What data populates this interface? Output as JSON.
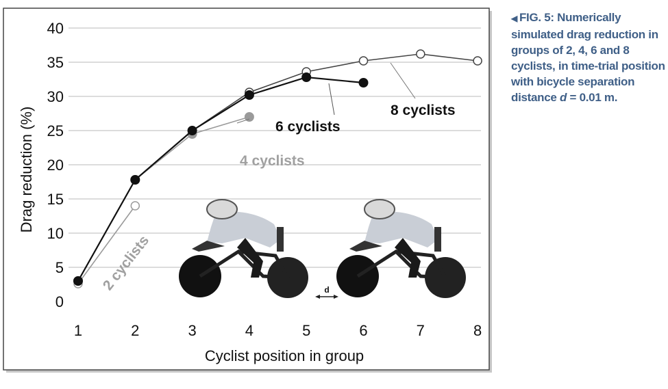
{
  "chart_data": {
    "type": "line",
    "xlabel": "Cyclist position in group",
    "ylabel": "Drag reduction (%)",
    "xlim": [
      1,
      8
    ],
    "ylim": [
      0,
      40
    ],
    "x_ticks": [
      "1",
      "2",
      "3",
      "4",
      "5",
      "6",
      "7",
      "8"
    ],
    "y_ticks": [
      "0",
      "5",
      "10",
      "15",
      "20",
      "25",
      "30",
      "35",
      "40"
    ],
    "grid": "horizontal",
    "series": [
      {
        "name": "2 cyclists",
        "x": [
          1,
          2
        ],
        "values": [
          2.6,
          14.0
        ],
        "color": "#9a9a9a",
        "marker": "open-circle",
        "label_color": "#a0a0a0"
      },
      {
        "name": "4 cyclists",
        "x": [
          1,
          2,
          3,
          4
        ],
        "values": [
          3.0,
          17.8,
          24.5,
          27.0
        ],
        "color": "#9a9a9a",
        "marker": "filled-circle",
        "label_color": "#a0a0a0"
      },
      {
        "name": "6 cyclists",
        "x": [
          1,
          2,
          3,
          4,
          5,
          6
        ],
        "values": [
          3.0,
          17.8,
          25.0,
          30.2,
          32.8,
          32.0
        ],
        "color": "#111111",
        "marker": "filled-circle",
        "label_color": "#111111"
      },
      {
        "name": "8 cyclists",
        "x": [
          1,
          2,
          3,
          4,
          5,
          6,
          7,
          8
        ],
        "values": [
          3.0,
          17.8,
          25.0,
          30.6,
          33.6,
          35.2,
          36.2,
          35.2
        ],
        "color": "#444444",
        "marker": "open-circle",
        "label_color": "#111111"
      }
    ],
    "annotations": [
      "d"
    ],
    "caption": {
      "prefix": "FIG. 5:",
      "text": "Numerically simulated drag reduction in groups of 2, 4, 6 and 8 cyclists, in time-trial position with bicycle separation distance",
      "variable": "d",
      "equation": "= 0.01 m."
    },
    "colors": {
      "caption": "#3f5f87",
      "grid": "#b8b8b8"
    }
  }
}
